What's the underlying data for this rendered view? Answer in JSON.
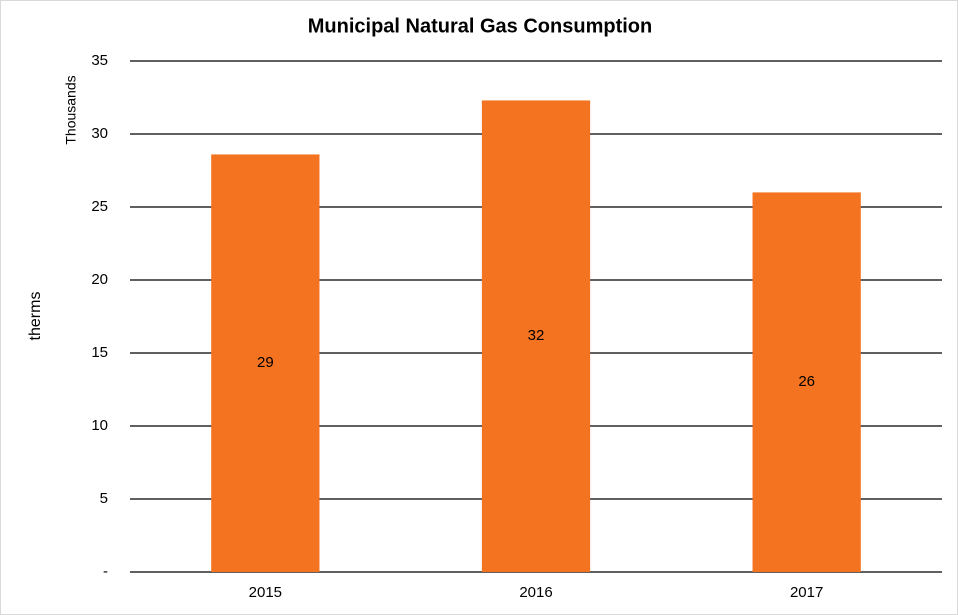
{
  "chart_data": {
    "type": "bar",
    "title": "Municipal Natural Gas Consumption",
    "y_label": "therms",
    "y_unit_label": "Thousands",
    "categories": [
      "2015",
      "2016",
      "2017"
    ],
    "values": [
      28.6,
      32.3,
      26.0
    ],
    "value_labels": [
      "29",
      "32",
      "26"
    ],
    "color": "#f47321",
    "ylim": [
      0,
      35
    ],
    "yticks": [
      {
        "value": 0,
        "label": "-"
      },
      5,
      10,
      15,
      20,
      25,
      30,
      35
    ],
    "grid": true
  }
}
